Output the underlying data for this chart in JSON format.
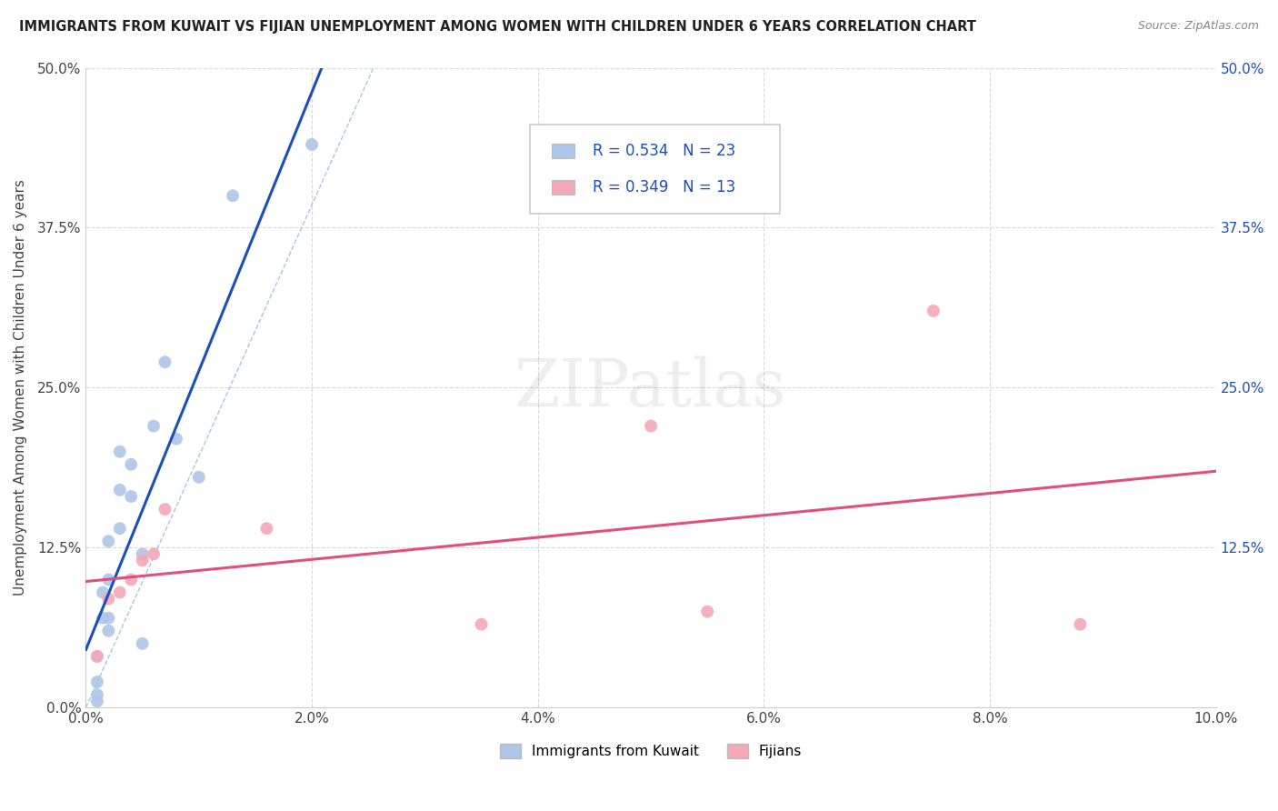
{
  "title": "IMMIGRANTS FROM KUWAIT VS FIJIAN UNEMPLOYMENT AMONG WOMEN WITH CHILDREN UNDER 6 YEARS CORRELATION CHART",
  "source": "Source: ZipAtlas.com",
  "ylabel": "Unemployment Among Women with Children Under 6 years",
  "xlim": [
    0.0,
    0.1
  ],
  "ylim": [
    0.0,
    0.5
  ],
  "xticks": [
    0.0,
    0.02,
    0.04,
    0.06,
    0.08,
    0.1
  ],
  "xtick_labels": [
    "0.0%",
    "2.0%",
    "4.0%",
    "6.0%",
    "8.0%",
    "10.0%"
  ],
  "yticks": [
    0.0,
    0.125,
    0.25,
    0.375,
    0.5
  ],
  "ytick_labels_left": [
    "0.0%",
    "12.5%",
    "25.0%",
    "37.5%",
    "50.0%"
  ],
  "ytick_labels_right": [
    "",
    "12.5%",
    "25.0%",
    "37.5%",
    "50.0%"
  ],
  "kuwait_R": "R = 0.534",
  "kuwait_N": "N = 23",
  "fijian_R": "R = 0.349",
  "fijian_N": "N = 13",
  "kuwait_color": "#aec6e8",
  "fijian_color": "#f4a8b8",
  "kuwait_line_color": "#1a4fbd",
  "fijian_line_color": "#e0507a",
  "legend_label_kuwait": "Immigrants from Kuwait",
  "legend_label_fijian": "Fijians",
  "watermark": "ZIPatlas",
  "background_color": "#ffffff",
  "grid_color": "#d8d8d8",
  "kuwait_x": [
    0.001,
    0.001,
    0.001,
    0.001,
    0.0015,
    0.0015,
    0.002,
    0.002,
    0.002,
    0.002,
    0.003,
    0.003,
    0.003,
    0.004,
    0.004,
    0.005,
    0.005,
    0.006,
    0.007,
    0.008,
    0.01,
    0.013,
    0.02
  ],
  "kuwait_y": [
    0.005,
    0.01,
    0.02,
    0.04,
    0.07,
    0.09,
    0.07,
    0.1,
    0.13,
    0.06,
    0.14,
    0.17,
    0.2,
    0.165,
    0.19,
    0.05,
    0.12,
    0.22,
    0.27,
    0.21,
    0.18,
    0.4,
    0.44
  ],
  "fijian_x": [
    0.001,
    0.002,
    0.003,
    0.004,
    0.005,
    0.006,
    0.007,
    0.016,
    0.035,
    0.05,
    0.055,
    0.075,
    0.088
  ],
  "fijian_y": [
    0.04,
    0.085,
    0.09,
    0.1,
    0.115,
    0.12,
    0.155,
    0.14,
    0.065,
    0.22,
    0.075,
    0.31,
    0.065
  ],
  "ref_line_x": [
    0.0,
    0.028
  ],
  "ref_line_y": [
    0.0,
    0.55
  ]
}
